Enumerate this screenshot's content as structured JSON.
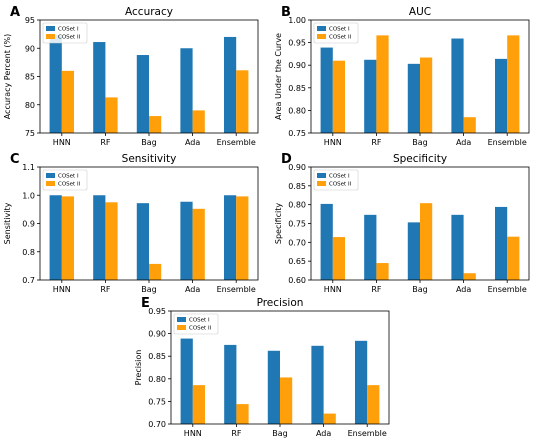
{
  "colors": {
    "coset_1": "#1f77b4",
    "coset_2": "#ff9f0a"
  },
  "chart_data": [
    {
      "type": "bar",
      "panel": "A",
      "title": "Accuracy",
      "ylabel": "Accuracy Percent (%)",
      "xlabel": "",
      "categories": [
        "HNN",
        "RF",
        "Bag",
        "Ada",
        "Ensemble"
      ],
      "series": [
        {
          "name": "COSet I",
          "values": [
            92.3,
            91.1,
            88.8,
            90.0,
            92.0
          ]
        },
        {
          "name": "COSet II",
          "values": [
            86.0,
            81.3,
            78.0,
            79.0,
            86.1
          ]
        }
      ],
      "ylim": [
        75,
        95
      ],
      "yticks": [
        "75",
        "80",
        "85",
        "90",
        "95"
      ],
      "legend": "top-left",
      "grid": false
    },
    {
      "type": "bar",
      "panel": "B",
      "title": "AUC",
      "ylabel": "Area Under the Curve",
      "xlabel": "",
      "categories": [
        "HNN",
        "RF",
        "Bag",
        "Ada",
        "Ensemble"
      ],
      "series": [
        {
          "name": "COSet I",
          "values": [
            0.939,
            0.912,
            0.903,
            0.959,
            0.914
          ]
        },
        {
          "name": "COSet II",
          "values": [
            0.91,
            0.966,
            0.917,
            0.785,
            0.966
          ]
        }
      ],
      "ylim": [
        0.75,
        1.0
      ],
      "yticks": [
        "0.75",
        "0.80",
        "0.85",
        "0.90",
        "0.95",
        "1.00"
      ],
      "legend": "top-left",
      "grid": false
    },
    {
      "type": "bar",
      "panel": "C",
      "title": "Sensitivity",
      "ylabel": "Sensitivity",
      "xlabel": "",
      "categories": [
        "HNN",
        "RF",
        "Bag",
        "Ada",
        "Ensemble"
      ],
      "series": [
        {
          "name": "COSet I",
          "values": [
            1.0,
            1.0,
            0.972,
            0.977,
            1.0
          ]
        },
        {
          "name": "COSet II",
          "values": [
            0.996,
            0.975,
            0.757,
            0.952,
            0.996
          ]
        }
      ],
      "ylim": [
        0.7,
        1.1
      ],
      "yticks": [
        "0.7",
        "0.8",
        "0.9",
        "1.0",
        "1.1"
      ],
      "legend": "top-left",
      "grid": false
    },
    {
      "type": "bar",
      "panel": "D",
      "title": "Specificity",
      "ylabel": "Specificity",
      "xlabel": "",
      "categories": [
        "HNN",
        "RF",
        "Bag",
        "Ada",
        "Ensemble"
      ],
      "series": [
        {
          "name": "COSet I",
          "values": [
            0.802,
            0.773,
            0.753,
            0.773,
            0.794
          ]
        },
        {
          "name": "COSet II",
          "values": [
            0.714,
            0.645,
            0.804,
            0.618,
            0.715
          ]
        }
      ],
      "ylim": [
        0.6,
        0.9
      ],
      "yticks": [
        "0.60",
        "0.65",
        "0.70",
        "0.75",
        "0.80",
        "0.85",
        "0.90"
      ],
      "legend": "top-left",
      "grid": false
    },
    {
      "type": "bar",
      "panel": "E",
      "title": "Precision",
      "ylabel": "Precision",
      "xlabel": "",
      "categories": [
        "HNN",
        "RF",
        "Bag",
        "Ada",
        "Ensemble"
      ],
      "series": [
        {
          "name": "COSet I",
          "values": [
            0.889,
            0.875,
            0.862,
            0.873,
            0.884
          ]
        },
        {
          "name": "COSet II",
          "values": [
            0.786,
            0.744,
            0.803,
            0.723,
            0.786
          ]
        }
      ],
      "ylim": [
        0.7,
        0.95
      ],
      "yticks": [
        "0.70",
        "0.75",
        "0.80",
        "0.85",
        "0.90",
        "0.95"
      ],
      "legend": "top-left",
      "grid": false
    }
  ]
}
